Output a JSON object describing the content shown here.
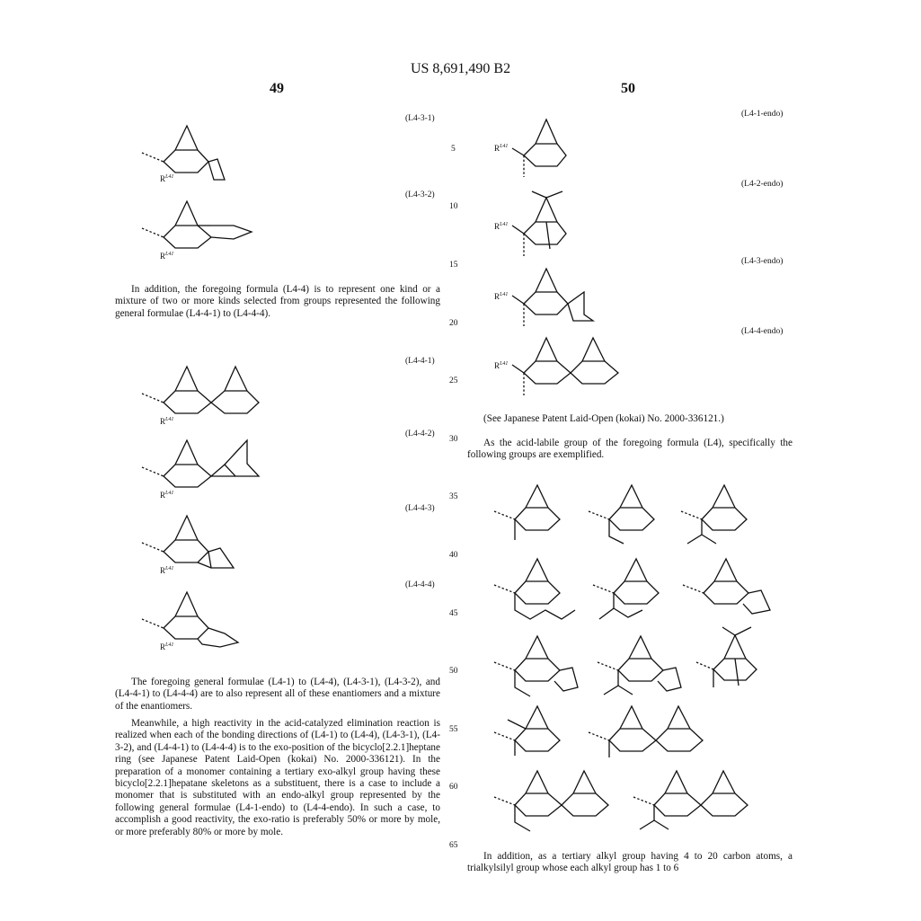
{
  "header": {
    "patent": "US 8,691,490 B2",
    "page_left": "49",
    "page_right": "50"
  },
  "line_numbers": [
    "5",
    "10",
    "15",
    "20",
    "25",
    "30",
    "35",
    "40",
    "45",
    "50",
    "55",
    "60",
    "65"
  ],
  "left": {
    "labels": [
      "(L4-3-1)",
      "(L4-3-2)",
      "(L4-4-1)",
      "(L4-4-2)",
      "(L4-4-3)",
      "(L4-4-4)"
    ],
    "substituent": "R",
    "substituent_sup": "L41",
    "para1": "In addition, the foregoing formula (L4-4) is to represent one kind or a mixture of two or more kinds selected from groups represented the following general formulae (L4-4-1) to (L4-4-4).",
    "para2": "The foregoing general formulae (L4-1) to (L4-4), (L4-3-1), (L4-3-2), and (L4-4-1) to (L4-4-4) are to also represent all of these enantiomers and a mixture of the enantiomers.",
    "para3": "Meanwhile, a high reactivity in the acid-catalyzed elimination reaction is realized when each of the bonding directions of (L4-1) to (L4-4), (L4-3-1), (L4-3-2), and (L4-4-1) to (L4-4-4) is to the exo-position of the bicyclo[2.2.1]heptane ring (see Japanese Patent Laid-Open (kokai) No. 2000-336121). In the preparation of a monomer containing a tertiary exo-alkyl group having these bicyclo[2.2.1]hepatane skeletons as a substituent, there is a case to include a monomer that is substituted with an endo-alkyl group represented by the following general formulae (L4-1-endo) to (L4-4-endo). In such a case, to accomplish a good reactivity, the exo-ratio is preferably 50% or more by mole, or more preferably 80% or more by mole."
  },
  "right": {
    "labels": [
      "(L4-1-endo)",
      "(L4-2-endo)",
      "(L4-3-endo)",
      "(L4-4-endo)"
    ],
    "para1": "(See Japanese Patent Laid-Open (kokai) No. 2000-336121.)",
    "para2": "As the acid-labile group of the foregoing formula (L4), specifically the following groups are exemplified.",
    "para3": "In addition, as a tertiary alkyl group having 4 to 20 carbon atoms, a trialkylsilyl group whose each alkyl group has 1 to 6"
  }
}
